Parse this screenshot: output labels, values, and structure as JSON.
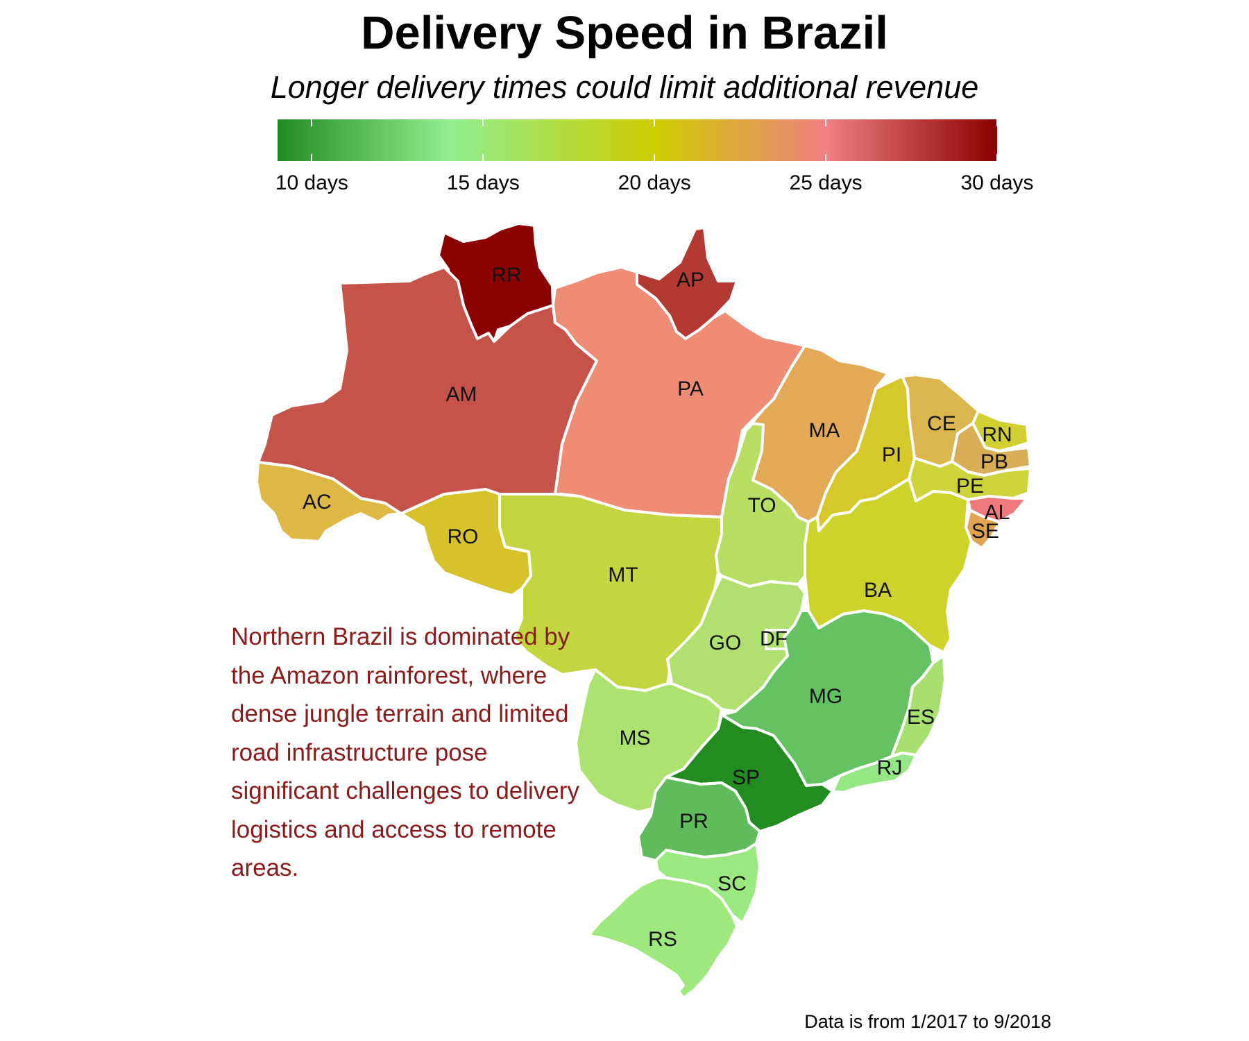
{
  "title": "Delivery Speed in Brazil",
  "subtitle": "Longer delivery times could limit additional revenue",
  "legend": {
    "min_days": 9,
    "max_days": 30,
    "ticks": [
      {
        "value": 10,
        "label": "10 days"
      },
      {
        "value": 15,
        "label": "15 days"
      },
      {
        "value": 20,
        "label": "20 days"
      },
      {
        "value": 25,
        "label": "25 days"
      },
      {
        "value": 30,
        "label": "30 days"
      }
    ],
    "gradient": [
      {
        "days": 9,
        "color": "#228b22"
      },
      {
        "days": 14,
        "color": "#90ee90"
      },
      {
        "days": 20,
        "color": "#cdcd00"
      },
      {
        "days": 25,
        "color": "#f08080"
      },
      {
        "days": 30,
        "color": "#8b0000"
      }
    ]
  },
  "states": [
    {
      "code": "RR",
      "color": "#8b0000"
    },
    {
      "code": "AP",
      "color": "#b33a33"
    },
    {
      "code": "AM",
      "color": "#c6534a"
    },
    {
      "code": "PA",
      "color": "#ee8c76"
    },
    {
      "code": "AC",
      "color": "#ddb844"
    },
    {
      "code": "RO",
      "color": "#d8c22b"
    },
    {
      "code": "MT",
      "color": "#c3d63f"
    },
    {
      "code": "MA",
      "color": "#e2a957"
    },
    {
      "code": "PI",
      "color": "#d6c82a"
    },
    {
      "code": "CE",
      "color": "#dbb64e"
    },
    {
      "code": "RN",
      "color": "#d2cf32"
    },
    {
      "code": "PB",
      "color": "#d7ad55"
    },
    {
      "code": "PE",
      "color": "#cdd33a"
    },
    {
      "code": "AL",
      "color": "#ef7a7d"
    },
    {
      "code": "SE",
      "color": "#e1a552"
    },
    {
      "code": "TO",
      "color": "#b7dd63"
    },
    {
      "code": "BA",
      "color": "#ccd42c"
    },
    {
      "code": "GO",
      "color": "#b0e06f"
    },
    {
      "code": "DF",
      "color": "#b0e06f"
    },
    {
      "code": "MG",
      "color": "#64c263"
    },
    {
      "code": "ES",
      "color": "#a8e070"
    },
    {
      "code": "MS",
      "color": "#ace26f"
    },
    {
      "code": "SP",
      "color": "#228b22"
    },
    {
      "code": "RJ",
      "color": "#95e685"
    },
    {
      "code": "PR",
      "color": "#61bb5d"
    },
    {
      "code": "SC",
      "color": "#9ae87f"
    },
    {
      "code": "RS",
      "color": "#9ee87e"
    }
  ],
  "note": "Northern Brazil is dominated by the Amazon rainforest, where dense jungle terrain and limited road infrastructure pose significant challenges to delivery logistics and access to remote areas.",
  "source": "Data is from 1/2017 to 9/2018"
}
